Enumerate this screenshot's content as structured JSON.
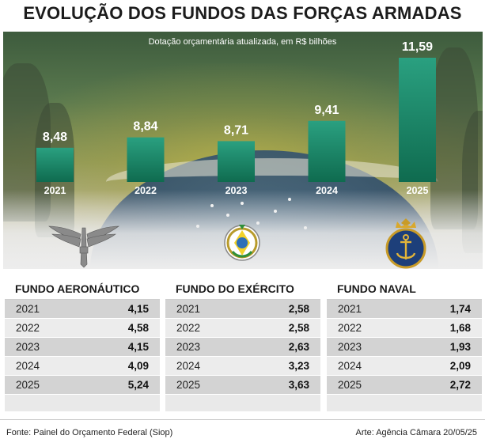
{
  "title": "EVOLUÇÃO DOS FUNDOS DAS FORÇAS ARMADAS",
  "subtitle": "Dotação orçamentária atualizada, em R$ bilhões",
  "colors": {
    "bar_top": "#2aa080",
    "bar_bottom": "#0f6b4f",
    "stripe_dark": "#d3d3d3",
    "stripe_light": "#ececec"
  },
  "chart_data": {
    "type": "bar",
    "title": "EVOLUÇÃO DOS FUNDOS DAS FORÇAS ARMADAS",
    "subtitle": "Dotação orçamentária atualizada, em R$ bilhões",
    "categories": [
      "2021",
      "2022",
      "2023",
      "2024",
      "2025"
    ],
    "values": [
      8.48,
      8.84,
      8.71,
      9.41,
      11.59
    ],
    "value_labels": [
      "8,48",
      "8,84",
      "8,71",
      "9,41",
      "11,59"
    ],
    "xlabel": "",
    "ylabel": "",
    "ylim": [
      7.3,
      11.59
    ],
    "grid": false,
    "legend": "none"
  },
  "emblems": [
    {
      "icon": "air-force-wings-icon"
    },
    {
      "icon": "army-emblem-icon"
    },
    {
      "icon": "navy-anchor-icon"
    }
  ],
  "tables": [
    {
      "header": "FUNDO AERONÁUTICO",
      "rows": [
        {
          "year": "2021",
          "value": "4,15"
        },
        {
          "year": "2022",
          "value": "4,58"
        },
        {
          "year": "2023",
          "value": "4,15"
        },
        {
          "year": "2024",
          "value": "4,09"
        },
        {
          "year": "2025",
          "value": "5,24"
        }
      ]
    },
    {
      "header": "FUNDO DO EXÉRCITO",
      "rows": [
        {
          "year": "2021",
          "value": "2,58"
        },
        {
          "year": "2022",
          "value": "2,58"
        },
        {
          "year": "2023",
          "value": "2,63"
        },
        {
          "year": "2024",
          "value": "3,23"
        },
        {
          "year": "2025",
          "value": "3,63"
        }
      ]
    },
    {
      "header": "FUNDO NAVAL",
      "rows": [
        {
          "year": "2021",
          "value": "1,74"
        },
        {
          "year": "2022",
          "value": "1,68"
        },
        {
          "year": "2023",
          "value": "1,93"
        },
        {
          "year": "2024",
          "value": "2,09"
        },
        {
          "year": "2025",
          "value": "2,72"
        }
      ]
    }
  ],
  "footer": {
    "source": "Fonte: Painel do Orçamento Federal (Siop)",
    "credit": "Arte: Agência Câmara 20/05/25"
  }
}
